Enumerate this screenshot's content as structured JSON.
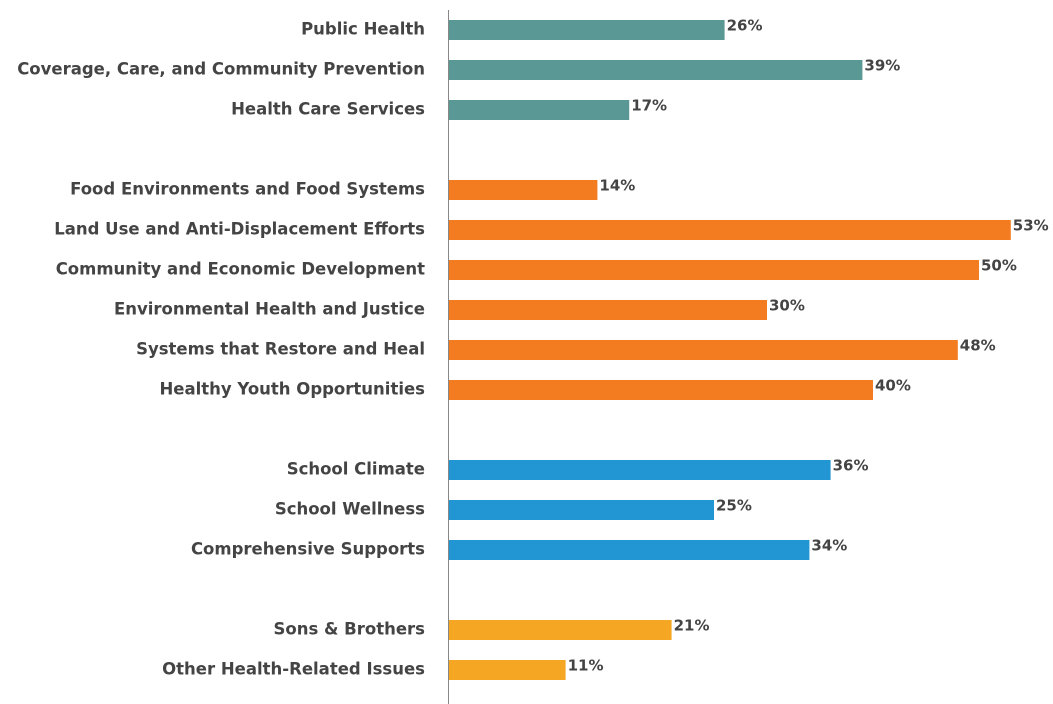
{
  "chart_data": {
    "type": "bar",
    "orientation": "horizontal",
    "groups": [
      {
        "color": "#5a9896",
        "categories": [
          "Public Health",
          "Coverage, Care, and Community Prevention",
          "Health Care Services"
        ],
        "values": [
          26,
          39,
          17
        ],
        "value_labels": [
          "26%",
          "39%",
          "17%"
        ]
      },
      {
        "color": "#f47c20",
        "categories": [
          "Food Environments and Food Systems",
          "Land Use and Anti-Displacement Efforts",
          "Community and Economic Development",
          "Environmental Health and Justice",
          "Systems that Restore and Heal",
          "Healthy Youth Opportunities"
        ],
        "values": [
          14,
          53,
          50,
          30,
          48,
          40
        ],
        "value_labels": [
          "14%",
          "53%",
          "50%",
          "30%",
          "48%",
          "40%"
        ]
      },
      {
        "color": "#2196d3",
        "categories": [
          "School Climate",
          "School Wellness",
          "Comprehensive Supports"
        ],
        "values": [
          36,
          25,
          34
        ],
        "value_labels": [
          "36%",
          "25%",
          "34%"
        ]
      },
      {
        "color": "#f5a623",
        "categories": [
          "Sons & Brothers",
          "Other Health-Related Issues"
        ],
        "values": [
          21,
          11
        ],
        "value_labels": [
          "21%",
          "11%"
        ]
      }
    ]
  }
}
